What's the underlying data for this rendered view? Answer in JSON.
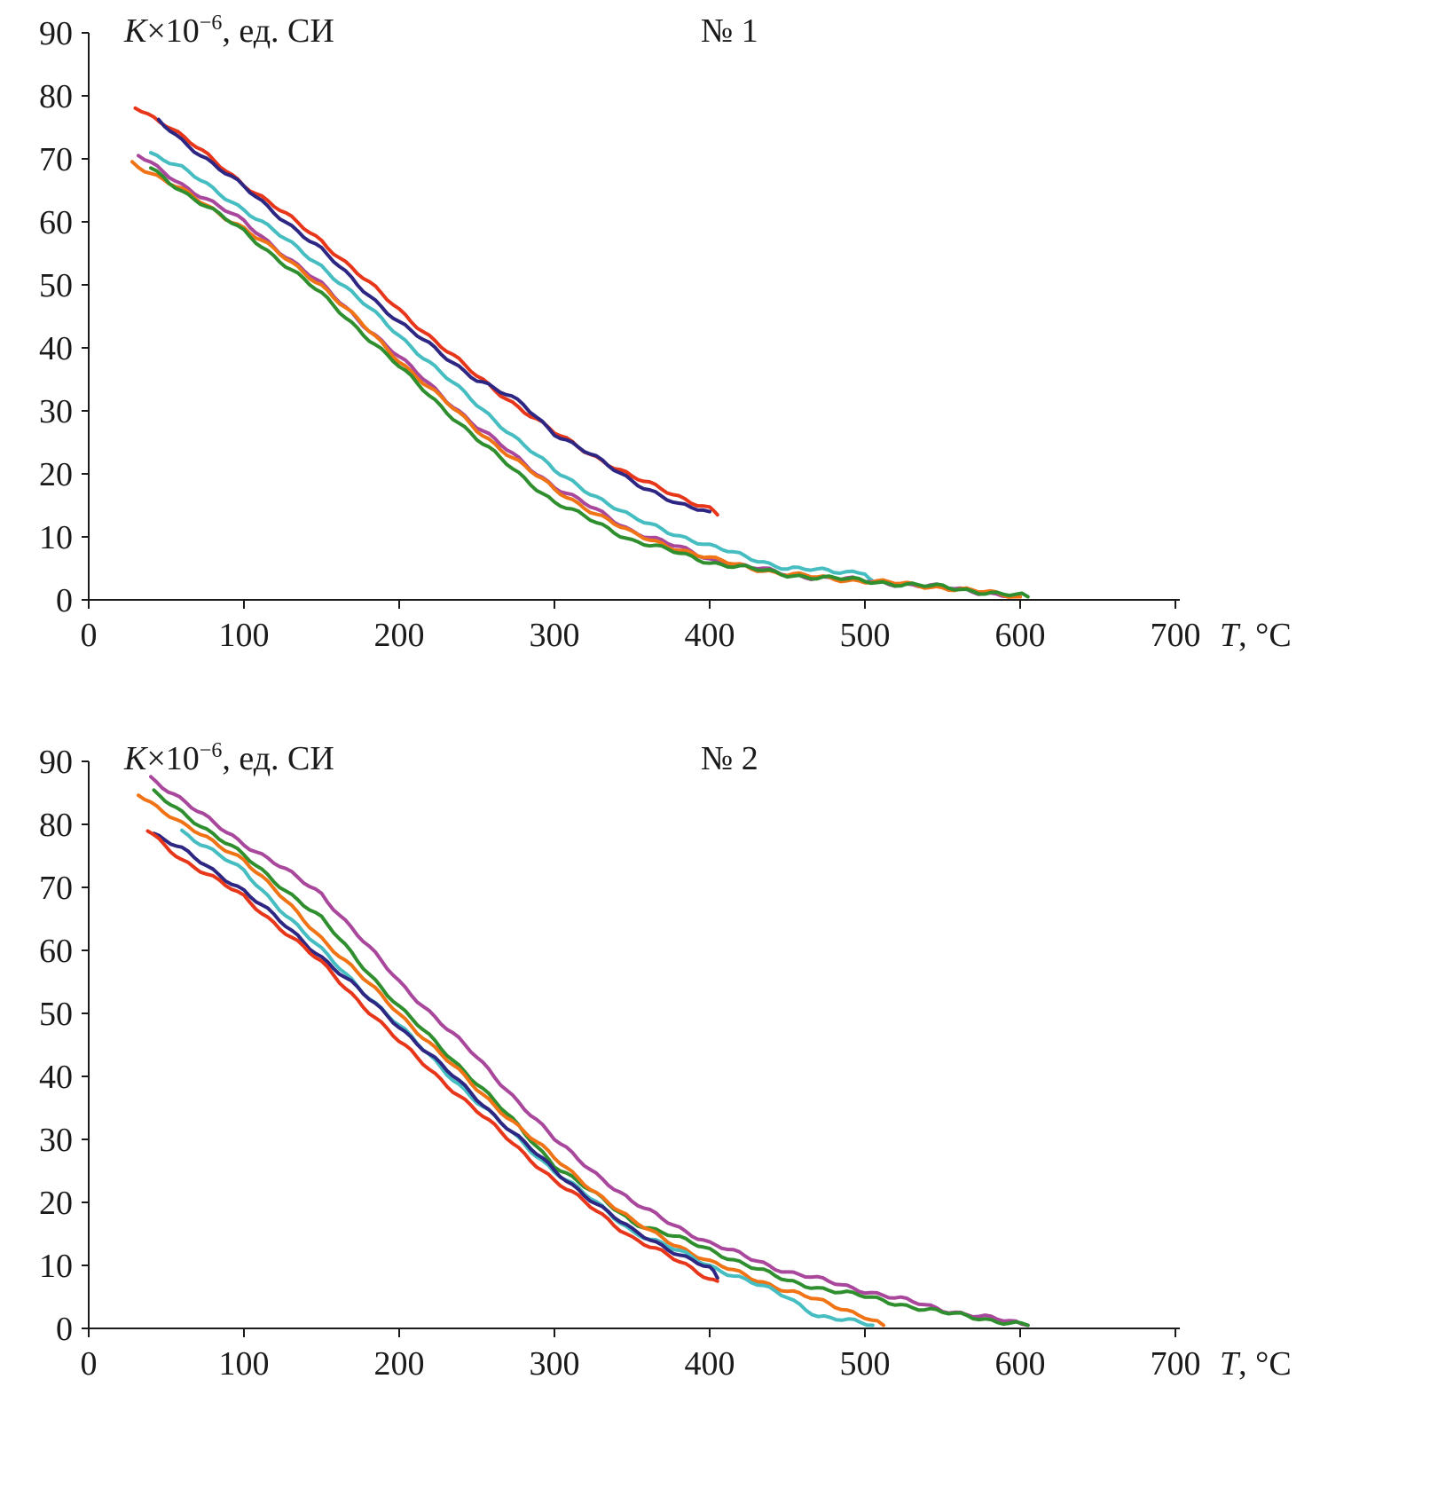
{
  "chart_data": [
    {
      "type": "line",
      "title": "№ 1",
      "ylabel": "K×10⁻⁶, ед. СИ",
      "ylabel_parts": {
        "var": "K",
        "mult": "×10",
        "exp": "−6",
        "unit": ", ед. СИ"
      },
      "xlabel": "T, °C",
      "xlabel_parts": {
        "var": "T",
        "unit": ", °C"
      },
      "xlim": [
        0,
        700
      ],
      "ylim": [
        0,
        90
      ],
      "xticks": [
        0,
        100,
        200,
        300,
        400,
        500,
        600,
        700
      ],
      "yticks": [
        0,
        10,
        20,
        30,
        40,
        50,
        60,
        70,
        80,
        90
      ],
      "grid": false,
      "legend": "none",
      "series": [
        {
          "name": "red",
          "color": "#e8361a",
          "x": [
            30,
            50,
            100,
            150,
            200,
            250,
            300,
            350,
            380,
            400,
            405
          ],
          "y": [
            78.3,
            75.5,
            66,
            57,
            46,
            35.5,
            26.5,
            19.5,
            16.5,
            14.5,
            13.5
          ]
        },
        {
          "name": "blue",
          "color": "#2e2683",
          "x": [
            45,
            60,
            100,
            150,
            200,
            250,
            280,
            300,
            350,
            380,
            400
          ],
          "y": [
            76,
            73,
            65.5,
            55.5,
            44,
            35,
            31,
            26.5,
            19,
            15,
            14
          ]
        },
        {
          "name": "cyan",
          "color": "#46bdc0",
          "x": [
            40,
            60,
            100,
            150,
            200,
            250,
            300,
            350,
            400,
            450,
            480,
            500,
            505
          ],
          "y": [
            71,
            68.5,
            62,
            53,
            42,
            31,
            20.5,
            13,
            8.5,
            5,
            4.5,
            4.5,
            3
          ]
        },
        {
          "name": "magenta",
          "color": "#a8479b",
          "x": [
            32,
            60,
            100,
            150,
            200,
            250,
            300,
            350,
            400,
            450,
            500,
            550,
            600
          ],
          "y": [
            70.5,
            66,
            60,
            50,
            38.5,
            27.5,
            18,
            11,
            6.5,
            4,
            3,
            2,
            0.5
          ]
        },
        {
          "name": "orange",
          "color": "#f07316",
          "x": [
            28,
            60,
            100,
            150,
            200,
            250,
            300,
            350,
            400,
            450,
            500,
            550,
            600
          ],
          "y": [
            69.5,
            65,
            59,
            50,
            38,
            27,
            17.5,
            10.5,
            6.5,
            4,
            3,
            2,
            0.5
          ]
        },
        {
          "name": "green",
          "color": "#2f8f2f",
          "x": [
            40,
            60,
            100,
            150,
            200,
            250,
            300,
            350,
            400,
            450,
            500,
            550,
            605
          ],
          "y": [
            68.5,
            65,
            58.5,
            48.5,
            37,
            25.5,
            15.5,
            9.5,
            6,
            4,
            3,
            2,
            0.5
          ]
        }
      ]
    },
    {
      "type": "line",
      "title": "№ 2",
      "ylabel": "K×10⁻⁶, ед. СИ",
      "ylabel_parts": {
        "var": "K",
        "mult": "×10",
        "exp": "−6",
        "unit": ", ед. СИ"
      },
      "xlabel": "T, °C",
      "xlabel_parts": {
        "var": "T",
        "unit": ", °C"
      },
      "xlim": [
        0,
        700
      ],
      "ylim": [
        0,
        90
      ],
      "xticks": [
        0,
        100,
        200,
        300,
        400,
        500,
        600,
        700
      ],
      "yticks": [
        0,
        10,
        20,
        30,
        40,
        50,
        60,
        70,
        80,
        90
      ],
      "grid": false,
      "legend": "none",
      "series": [
        {
          "name": "magenta",
          "color": "#a8479b",
          "x": [
            40,
            70,
            100,
            150,
            200,
            250,
            300,
            350,
            400,
            450,
            500,
            550,
            605
          ],
          "y": [
            87.5,
            82,
            77,
            69,
            55,
            43,
            30,
            20,
            13.5,
            9,
            6,
            3,
            0.5
          ]
        },
        {
          "name": "green",
          "color": "#2f8f2f",
          "x": [
            42,
            60,
            100,
            150,
            200,
            250,
            300,
            350,
            400,
            450,
            500,
            550,
            605
          ],
          "y": [
            85,
            82,
            75,
            65,
            51,
            39,
            26,
            17,
            12.5,
            7.5,
            5,
            2.5,
            0.5
          ]
        },
        {
          "name": "orange",
          "color": "#f07316",
          "x": [
            32,
            60,
            100,
            150,
            200,
            250,
            300,
            350,
            400,
            450,
            500,
            512
          ],
          "y": [
            85,
            80,
            74.5,
            62,
            50,
            38,
            27,
            17,
            10.5,
            6,
            2,
            0.5
          ]
        },
        {
          "name": "cyan",
          "color": "#46bdc0",
          "x": [
            60,
            100,
            150,
            200,
            250,
            300,
            350,
            400,
            450,
            470,
            505
          ],
          "y": [
            79,
            72.5,
            60,
            48,
            36,
            25,
            15.5,
            10,
            5,
            2,
            0.5
          ]
        },
        {
          "name": "blue",
          "color": "#2e2683",
          "x": [
            42,
            60,
            100,
            150,
            200,
            250,
            300,
            350,
            400,
            405
          ],
          "y": [
            78.5,
            76,
            69.5,
            59,
            48,
            36.5,
            25,
            15.5,
            9.5,
            8
          ]
        },
        {
          "name": "red",
          "color": "#e8361a",
          "x": [
            38,
            60,
            100,
            150,
            200,
            250,
            300,
            350,
            400,
            405
          ],
          "y": [
            79,
            74.5,
            68.5,
            58,
            45.5,
            34.5,
            23.5,
            14.5,
            8,
            7.5
          ]
        }
      ]
    }
  ]
}
